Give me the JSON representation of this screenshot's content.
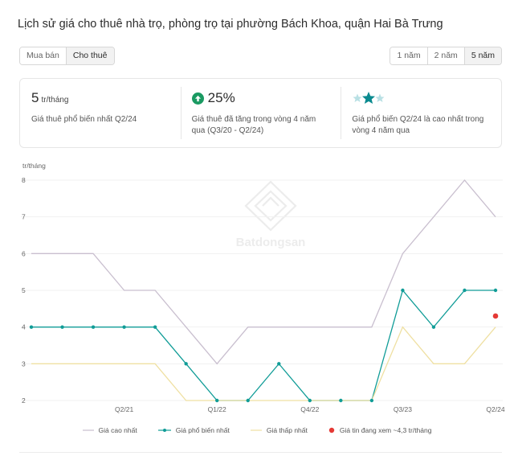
{
  "page": {
    "title": "Lịch sử giá cho thuê nhà trọ, phòng trọ tại phường Bách Khoa, quận Hai Bà Trưng"
  },
  "type_toggle": {
    "options": [
      "Mua bán",
      "Cho thuê"
    ],
    "selected": "Cho thuê"
  },
  "period_toggle": {
    "options": [
      "1 năm",
      "2 năm",
      "5 năm"
    ],
    "selected": "5 năm"
  },
  "stats": {
    "price": {
      "value": "5",
      "unit": "tr/tháng",
      "desc": "Giá thuê phổ biến nhất Q2/24"
    },
    "growth": {
      "value": "25%",
      "desc": "Giá thuê đã tăng trong vòng 4 năm qua (Q3/20 - Q2/24)",
      "icon": "arrow-up-circle-icon",
      "color": "#1a9a62"
    },
    "rank": {
      "desc": "Giá phổ biến Q2/24 là cao nhất trong vòng 4 năm qua",
      "icon": "three-stars-icon",
      "star_colors": [
        "#b9e0e4",
        "#0a8a8f",
        "#b9e0e4"
      ]
    }
  },
  "watermark": {
    "text": "Batdongsan",
    "icon": "house-logo-icon"
  },
  "chart_data": {
    "type": "line",
    "ylabel": "tr/tháng",
    "ylim": [
      2,
      8
    ],
    "yticks": [
      2,
      3,
      4,
      5,
      6,
      7,
      8
    ],
    "x_count": 16,
    "xtick_labels": [
      {
        "index": 3,
        "label": "Q2/21"
      },
      {
        "index": 6,
        "label": "Q1/22"
      },
      {
        "index": 9,
        "label": "Q4/22"
      },
      {
        "index": 12,
        "label": "Q3/23"
      },
      {
        "index": 15,
        "label": "Q2/24"
      }
    ],
    "series": [
      {
        "name": "Giá cao nhất",
        "color": "#c9bfcf",
        "markers": false,
        "values": [
          6,
          6,
          6,
          5,
          5,
          4,
          3,
          4,
          4,
          4,
          4,
          4,
          6,
          7,
          8,
          7
        ]
      },
      {
        "name": "Giá phổ biến nhất",
        "color": "#109c97",
        "markers": true,
        "values": [
          4,
          4,
          4,
          4,
          4,
          3,
          2,
          2,
          3,
          2,
          2,
          2,
          5,
          4,
          5,
          5
        ]
      },
      {
        "name": "Giá thấp nhất",
        "color": "#efe0a2",
        "markers": false,
        "values": [
          3,
          3,
          3,
          3,
          3,
          2,
          2,
          2,
          2,
          2,
          2,
          2,
          4,
          3,
          3,
          4
        ]
      }
    ],
    "highlight_point": {
      "name": "Giá tin đang xem ~4,3 tr/tháng",
      "color": "#e53935",
      "index": 15,
      "value": 4.3
    }
  }
}
